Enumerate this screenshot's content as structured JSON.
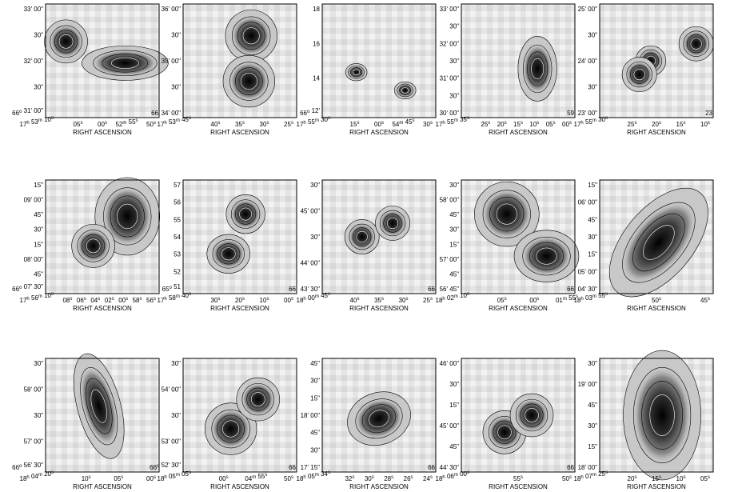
{
  "panels": [
    {
      "yticks": [
        "33' 00\"",
        "30\"",
        "32' 00\"",
        "30\"",
        "66o 31' 00\""
      ],
      "xticks": [
        "17h 53m 10s",
        "05s",
        "00s",
        "52m 55s",
        "50s"
      ],
      "xlabel": "RIGHT ASCENSION",
      "corner": "66"
    },
    {
      "yticks": [
        "36' 00\"",
        "30\"",
        "35' 00\"",
        "30\"",
        "34' 00\""
      ],
      "xticks": [
        "17h 53m 45s",
        "40s",
        "35s",
        "30s",
        "25s"
      ],
      "xlabel": "RIGHT ASCENSION"
    },
    {
      "yticks": [
        "18",
        "16",
        "14",
        "66o 12'"
      ],
      "xticks": [
        "17h 55m 30s",
        "15s",
        "00s",
        "54m 45s",
        "30s"
      ],
      "xlabel": "RIGHT ASCENSION"
    },
    {
      "yticks": [
        "33' 00\"",
        "30\"",
        "32' 00\"",
        "30\"",
        "31' 00\"",
        "30\"",
        "30' 00\""
      ],
      "xticks": [
        "17h 55m 35s",
        "25s",
        "20s",
        "15s",
        "10s",
        "05s",
        "00s"
      ],
      "xlabel": "RIGHT ASCENSION",
      "corner": "59"
    },
    {
      "yticks": [
        "25' 00\"",
        "30\"",
        "24' 00\"",
        "30\"",
        "23' 00\""
      ],
      "xticks": [
        "17h 55m 30s",
        "25s",
        "20s",
        "15s",
        "10s"
      ],
      "xlabel": "RIGHT ASCENSION",
      "corner": "23"
    },
    {
      "yticks": [
        "15\"",
        "09' 00\"",
        "45\"",
        "30\"",
        "15\"",
        "08' 00\"",
        "45\"",
        "66o 07' 30\""
      ],
      "xticks": [
        "17h 56m 10s",
        "08s",
        "06s",
        "04s",
        "02s",
        "00s",
        "58s",
        "56s"
      ],
      "xlabel": "RIGHT ASCENSION"
    },
    {
      "yticks": [
        "57",
        "56",
        "55",
        "54",
        "53",
        "52",
        "65o 51"
      ],
      "xticks": [
        "17h 58m 40s",
        "30s",
        "20s",
        "10s",
        "00s"
      ],
      "xlabel": "RIGHT ASCENSION",
      "corner": "66"
    },
    {
      "yticks": [
        "30\"",
        "45' 00\"",
        "30\"",
        "44' 00\"",
        "43' 30\""
      ],
      "xticks": [
        "18h 00m 45s",
        "40s",
        "35s",
        "30s",
        "25s"
      ],
      "xlabel": "RIGHT ASCENSION",
      "corner": "66"
    },
    {
      "yticks": [
        "30\"",
        "58' 00\"",
        "45\"",
        "30\"",
        "15\"",
        "57' 00\"",
        "45\"",
        "56' 45\""
      ],
      "xticks": [
        "18h 02m 10s",
        "05s",
        "00s",
        "01m 55s"
      ],
      "xlabel": "RIGHT ASCENSION",
      "corner": "66"
    },
    {
      "yticks": [
        "15\"",
        "06' 00\"",
        "45\"",
        "30\"",
        "15\"",
        "05' 00\"",
        "04' 30\""
      ],
      "xticks": [
        "18h 03m 55s",
        "50s",
        "45s"
      ],
      "xlabel": "RIGHT ASCENSION"
    },
    {
      "yticks": [
        "30\"",
        "58' 00\"",
        "30\"",
        "57' 00\"",
        "66o 56' 30\""
      ],
      "xticks": [
        "18h 04m 20s",
        "10s",
        "05s",
        "00s"
      ],
      "xlabel": "RIGHT ASCENSION"
    },
    {
      "yticks": [
        "30\"",
        "54' 00\"",
        "30\"",
        "53' 00\"",
        "66o 52' 30\""
      ],
      "xticks": [
        "18h 05m 05s",
        "00s",
        "04m 55s",
        "50s"
      ],
      "xlabel": "RIGHT ASCENSION",
      "corner": "66"
    },
    {
      "yticks": [
        "45\"",
        "30\"",
        "15\"",
        "18' 00\"",
        "45\"",
        "30\"",
        "17' 15\""
      ],
      "xticks": [
        "18h 05m 34s",
        "32s",
        "30s",
        "28s",
        "26s",
        "24s"
      ],
      "xlabel": "RIGHT ASCENSION",
      "corner": "66"
    },
    {
      "yticks": [
        "46' 00\"",
        "30\"",
        "15\"",
        "45' 00\"",
        "45\"",
        "44' 30\""
      ],
      "xticks": [
        "18h 06m 00s",
        "55s",
        "50s"
      ],
      "xlabel": "RIGHT ASCENSION",
      "corner": "66"
    },
    {
      "yticks": [
        "30\"",
        "19' 00\"",
        "45\"",
        "30\"",
        "15\"",
        "18' 00\""
      ],
      "xticks": [
        "18h 07m 25s",
        "20s",
        "15s",
        "10s",
        "05s"
      ],
      "xlabel": "RIGHT ASCENSION"
    }
  ]
}
